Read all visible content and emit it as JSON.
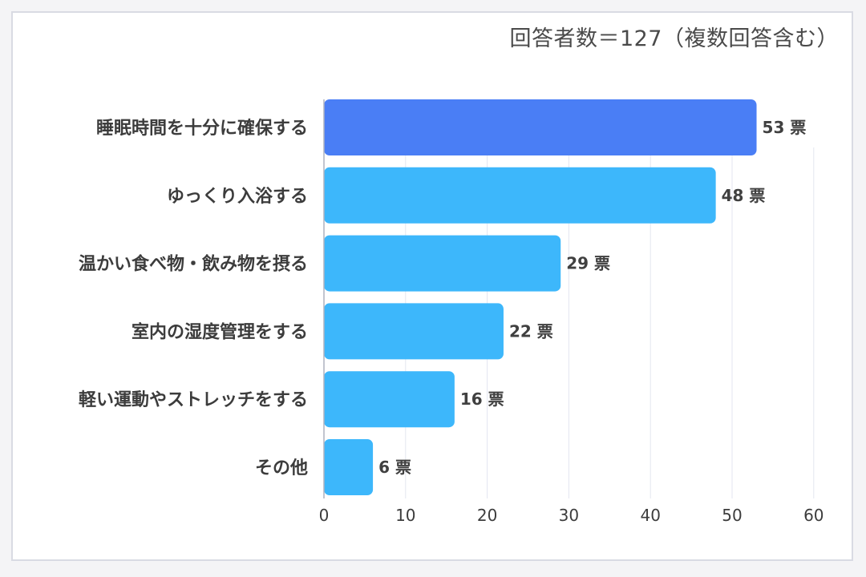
{
  "note": "回答者数＝127（複数回答含む）",
  "chart_data": {
    "type": "bar",
    "orientation": "horizontal",
    "categories": [
      "睡眠時間を十分に確保する",
      "ゆっくり入浴する",
      "温かい食べ物・飲み物を摂る",
      "室内の湿度管理をする",
      "軽い運動やストレッチをする",
      "その他"
    ],
    "values": [
      53,
      48,
      29,
      22,
      16,
      6
    ],
    "value_labels": [
      "53 票",
      "48 票",
      "29 票",
      "22 票",
      "16 票",
      "6 票"
    ],
    "xticks": [
      "0",
      "10",
      "20",
      "30",
      "40",
      "50",
      "60"
    ],
    "xlim": [
      0,
      60
    ],
    "grid": "vertical",
    "colors": {
      "highlight": "#4a7ef5",
      "bar": "#3db7fb",
      "grid": "#e3e6f0",
      "axis": "#aeb2bf"
    }
  }
}
